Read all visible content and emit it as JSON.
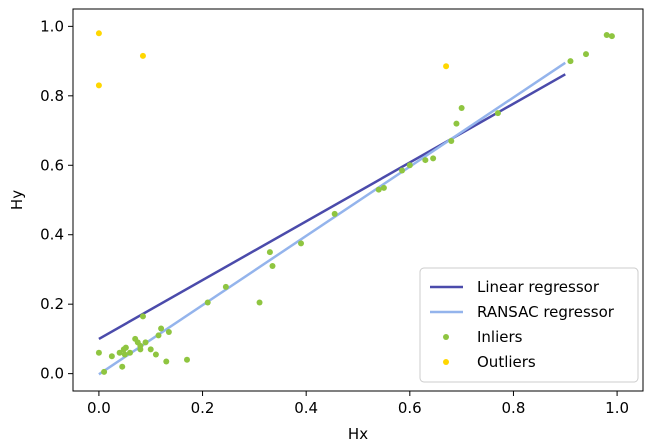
{
  "chart_data": {
    "type": "scatter",
    "title": "",
    "xlabel": "Hx",
    "ylabel": "Hy",
    "xlim": [
      -0.05,
      1.05
    ],
    "ylim": [
      -0.05,
      1.05
    ],
    "x_ticks": [
      0.0,
      0.2,
      0.4,
      0.6,
      0.8,
      1.0
    ],
    "x_tick_labels": [
      "0.0",
      "0.2",
      "0.4",
      "0.6",
      "0.8",
      "1.0"
    ],
    "y_ticks": [
      0.0,
      0.2,
      0.4,
      0.6,
      0.8,
      1.0
    ],
    "y_tick_labels": [
      "0.0",
      "0.2",
      "0.4",
      "0.6",
      "0.8",
      "1.0"
    ],
    "grid": false,
    "legend_position": "bottom-right",
    "series": [
      {
        "name": "Linear regressor",
        "kind": "line",
        "color": "#4b4bab",
        "x": [
          0.0,
          0.9
        ],
        "y": [
          0.1,
          0.862
        ]
      },
      {
        "name": "RANSAC regressor",
        "kind": "line",
        "color": "#94b4ec",
        "x": [
          0.0,
          0.9
        ],
        "y": [
          -0.002,
          0.895
        ]
      },
      {
        "name": "Inliers",
        "kind": "scatter",
        "color": "#8fc540",
        "x": [
          0.0,
          0.01,
          0.025,
          0.04,
          0.045,
          0.048,
          0.05,
          0.052,
          0.06,
          0.07,
          0.075,
          0.08,
          0.085,
          0.09,
          0.1,
          0.11,
          0.115,
          0.12,
          0.13,
          0.135,
          0.17,
          0.21,
          0.245,
          0.31,
          0.33,
          0.335,
          0.39,
          0.455,
          0.54,
          0.55,
          0.585,
          0.6,
          0.63,
          0.645,
          0.68,
          0.69,
          0.7,
          0.77,
          0.91,
          0.94,
          0.98,
          0.99,
          0.08
        ],
        "y": [
          0.06,
          0.005,
          0.05,
          0.06,
          0.02,
          0.07,
          0.055,
          0.075,
          0.06,
          0.1,
          0.09,
          0.07,
          0.165,
          0.09,
          0.07,
          0.055,
          0.11,
          0.13,
          0.035,
          0.12,
          0.04,
          0.205,
          0.25,
          0.205,
          0.35,
          0.31,
          0.375,
          0.46,
          0.53,
          0.535,
          0.585,
          0.6,
          0.615,
          0.62,
          0.67,
          0.72,
          0.765,
          0.75,
          0.9,
          0.92,
          0.975,
          0.972,
          0.08
        ]
      },
      {
        "name": "Outliers",
        "kind": "scatter",
        "color": "#ffd700",
        "x": [
          0.0,
          0.0,
          0.085,
          0.67
        ],
        "y": [
          0.98,
          0.83,
          0.915,
          0.885
        ]
      }
    ]
  }
}
